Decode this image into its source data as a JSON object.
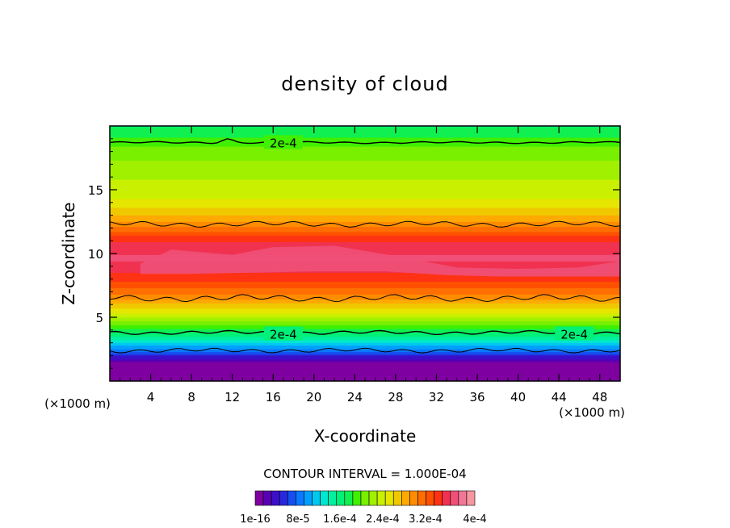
{
  "chart_data": {
    "type": "heatmap",
    "title": "density of cloud",
    "xlabel": "X-coordinate",
    "ylabel": "Z-coordinate",
    "x_unit_left": "(×1000 m)",
    "x_unit_right": "(×1000 m)",
    "xlim": [
      0,
      50
    ],
    "ylim": [
      0,
      20
    ],
    "x_ticks": [
      4,
      8,
      12,
      16,
      20,
      24,
      28,
      32,
      36,
      40,
      44,
      48
    ],
    "y_ticks": [
      5,
      10,
      15
    ],
    "contour_interval_text": "CONTOUR INTERVAL = 1.000E-04",
    "contour_labels": [
      {
        "text": "2e-4",
        "x": 17,
        "z": 18.7
      },
      {
        "text": "2e-4",
        "x": 17,
        "z": 3.7
      },
      {
        "text": "2e-4",
        "x": 45.5,
        "z": 3.7
      }
    ],
    "vertical_profile": [
      {
        "z": 0.5,
        "value": 0.0
      },
      {
        "z": 1.3,
        "value": 0.0
      },
      {
        "z": 1.9,
        "value": 4e-05
      },
      {
        "z": 2.4,
        "value": 8e-05
      },
      {
        "z": 3.0,
        "value": 0.00012
      },
      {
        "z": 3.7,
        "value": 0.00016
      },
      {
        "z": 4.5,
        "value": 0.0002
      },
      {
        "z": 5.4,
        "value": 0.00024
      },
      {
        "z": 6.4,
        "value": 0.00028
      },
      {
        "z": 7.5,
        "value": 0.00032
      },
      {
        "z": 8.5,
        "value": 0.00034
      },
      {
        "z": 9.6,
        "value": 0.00036
      },
      {
        "z": 11.0,
        "value": 0.00034
      },
      {
        "z": 12.5,
        "value": 0.00028
      },
      {
        "z": 14.0,
        "value": 0.00024
      },
      {
        "z": 16.0,
        "value": 0.00022
      },
      {
        "z": 18.0,
        "value": 0.0002
      },
      {
        "z": 20.0,
        "value": 0.00016
      }
    ],
    "colorbar": {
      "labels": [
        "1e-16",
        "8e-5",
        "1.6e-4",
        "2.4e-4",
        "3.2e-4",
        "4e-4"
      ],
      "colors": [
        "#7f00a0",
        "#5a00b4",
        "#3c0fc8",
        "#2828dc",
        "#1450f0",
        "#0a78ff",
        "#00a0ff",
        "#00c8f0",
        "#00e6d2",
        "#00f0a0",
        "#00f078",
        "#10f050",
        "#40f000",
        "#78f000",
        "#a0f000",
        "#c8f000",
        "#e6e600",
        "#f0c800",
        "#ffaa00",
        "#ff8c00",
        "#ff6e00",
        "#ff5000",
        "#ff3214",
        "#f03250",
        "#f05078",
        "#f07896",
        "#f896a0"
      ],
      "range": [
        0,
        0.0004
      ]
    }
  }
}
